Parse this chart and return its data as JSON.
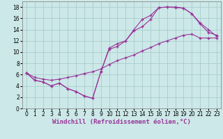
{
  "bg_color": "#cce8e8",
  "grid_color": "#aacccc",
  "line_color": "#993399",
  "xlabel": "Windchill (Refroidissement éolien,°C)",
  "xlabel_fontsize": 6.5,
  "xlim": [
    -0.5,
    23.5
  ],
  "ylim": [
    0,
    19
  ],
  "xticks": [
    0,
    1,
    2,
    3,
    4,
    5,
    6,
    7,
    8,
    9,
    10,
    11,
    12,
    13,
    14,
    15,
    16,
    17,
    18,
    19,
    20,
    21,
    22,
    23
  ],
  "yticks": [
    0,
    2,
    4,
    6,
    8,
    10,
    12,
    14,
    16,
    18
  ],
  "tick_fontsize": 5.5,
  "line1_x": [
    0,
    1,
    2,
    3,
    4,
    5,
    6,
    7,
    8,
    9,
    10,
    11,
    12,
    13,
    14,
    15,
    16,
    17,
    18,
    19,
    20,
    21,
    22,
    23
  ],
  "line1_y": [
    6.3,
    5.0,
    4.7,
    4.0,
    4.5,
    3.5,
    3.0,
    2.2,
    1.8,
    6.5,
    10.5,
    11.0,
    12.0,
    13.8,
    14.5,
    15.8,
    17.9,
    18.0,
    17.9,
    17.8,
    16.8,
    15.0,
    13.5,
    13.0
  ],
  "line2_x": [
    0,
    1,
    2,
    3,
    4,
    5,
    6,
    7,
    8,
    9,
    10,
    11,
    12,
    13,
    14,
    15,
    16,
    17,
    18,
    19,
    20,
    21,
    22,
    23
  ],
  "line2_y": [
    6.3,
    5.0,
    4.7,
    4.0,
    4.5,
    3.5,
    3.0,
    2.2,
    1.8,
    6.5,
    10.7,
    11.5,
    12.0,
    14.0,
    15.8,
    16.5,
    17.9,
    18.0,
    18.0,
    17.8,
    16.8,
    15.2,
    14.0,
    12.8
  ],
  "line3_x": [
    0,
    1,
    2,
    3,
    4,
    5,
    6,
    7,
    8,
    9,
    10,
    11,
    12,
    13,
    14,
    15,
    16,
    17,
    18,
    19,
    20,
    21,
    22,
    23
  ],
  "line3_y": [
    6.3,
    5.5,
    5.2,
    5.0,
    5.2,
    5.5,
    5.8,
    6.2,
    6.5,
    7.0,
    7.8,
    8.5,
    9.0,
    9.5,
    10.2,
    10.8,
    11.5,
    12.0,
    12.5,
    13.0,
    13.2,
    12.5,
    12.5,
    12.5
  ]
}
